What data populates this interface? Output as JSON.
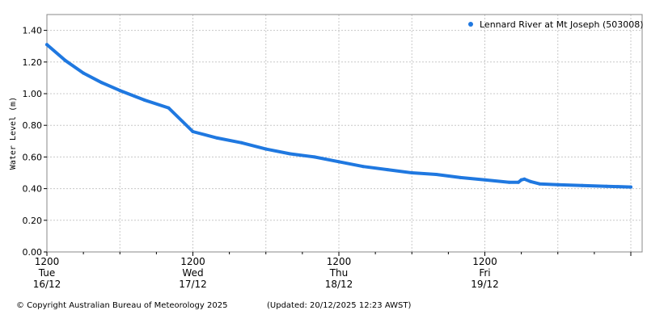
{
  "chart_data": {
    "type": "line",
    "title": "",
    "xlabel": "",
    "ylabel": "Water Level (m)",
    "ylim": [
      0,
      1.5
    ],
    "yticks": [
      "0.00",
      "0.20",
      "0.40",
      "0.60",
      "0.80",
      "1.00",
      "1.20",
      "1.40"
    ],
    "xlim": [
      "2025-12-16 12:00",
      "2025-12-20 12:00"
    ],
    "xticks": [
      {
        "time": "2025-12-16 12:00",
        "lines": [
          "1200",
          "Tue",
          "16/12"
        ]
      },
      {
        "time": "2025-12-17 12:00",
        "lines": [
          "1200",
          "Wed",
          "17/12"
        ]
      },
      {
        "time": "2025-12-18 12:00",
        "lines": [
          "1200",
          "Thu",
          "18/12"
        ]
      },
      {
        "time": "2025-12-19 12:00",
        "lines": [
          "1200",
          "Fri",
          "19/12"
        ]
      }
    ],
    "grid": true,
    "legend_position": "top-right",
    "series": [
      {
        "name": "Lennard River at Mt Joseph (503008)",
        "color": "#1f78e0",
        "points": [
          [
            "2025-12-16 12:00",
            1.31
          ],
          [
            "2025-12-16 15:00",
            1.21
          ],
          [
            "2025-12-16 18:00",
            1.13
          ],
          [
            "2025-12-16 21:00",
            1.07
          ],
          [
            "2025-12-17 00:00",
            1.02
          ],
          [
            "2025-12-17 04:00",
            0.96
          ],
          [
            "2025-12-17 08:00",
            0.91
          ],
          [
            "2025-12-17 12:00",
            0.76
          ],
          [
            "2025-12-17 16:00",
            0.72
          ],
          [
            "2025-12-17 20:00",
            0.69
          ],
          [
            "2025-12-18 00:00",
            0.65
          ],
          [
            "2025-12-18 04:00",
            0.62
          ],
          [
            "2025-12-18 08:00",
            0.6
          ],
          [
            "2025-12-18 12:00",
            0.57
          ],
          [
            "2025-12-18 16:00",
            0.54
          ],
          [
            "2025-12-18 20:00",
            0.52
          ],
          [
            "2025-12-19 00:00",
            0.5
          ],
          [
            "2025-12-19 04:00",
            0.49
          ],
          [
            "2025-12-19 08:00",
            0.47
          ],
          [
            "2025-12-19 12:00",
            0.455
          ],
          [
            "2025-12-19 16:00",
            0.44
          ],
          [
            "2025-12-19 17:30",
            0.44
          ],
          [
            "2025-12-19 18:00",
            0.455
          ],
          [
            "2025-12-19 18:30",
            0.46
          ],
          [
            "2025-12-19 19:30",
            0.445
          ],
          [
            "2025-12-19 21:00",
            0.43
          ],
          [
            "2025-12-20 00:00",
            0.425
          ],
          [
            "2025-12-20 04:00",
            0.42
          ],
          [
            "2025-12-20 08:00",
            0.415
          ],
          [
            "2025-12-20 12:00",
            0.41
          ]
        ]
      }
    ]
  },
  "footer": {
    "copyright": "© Copyright Australian Bureau of Meteorology 2025",
    "updated": "(Updated: 20/12/2025 12:23 AWST)"
  }
}
